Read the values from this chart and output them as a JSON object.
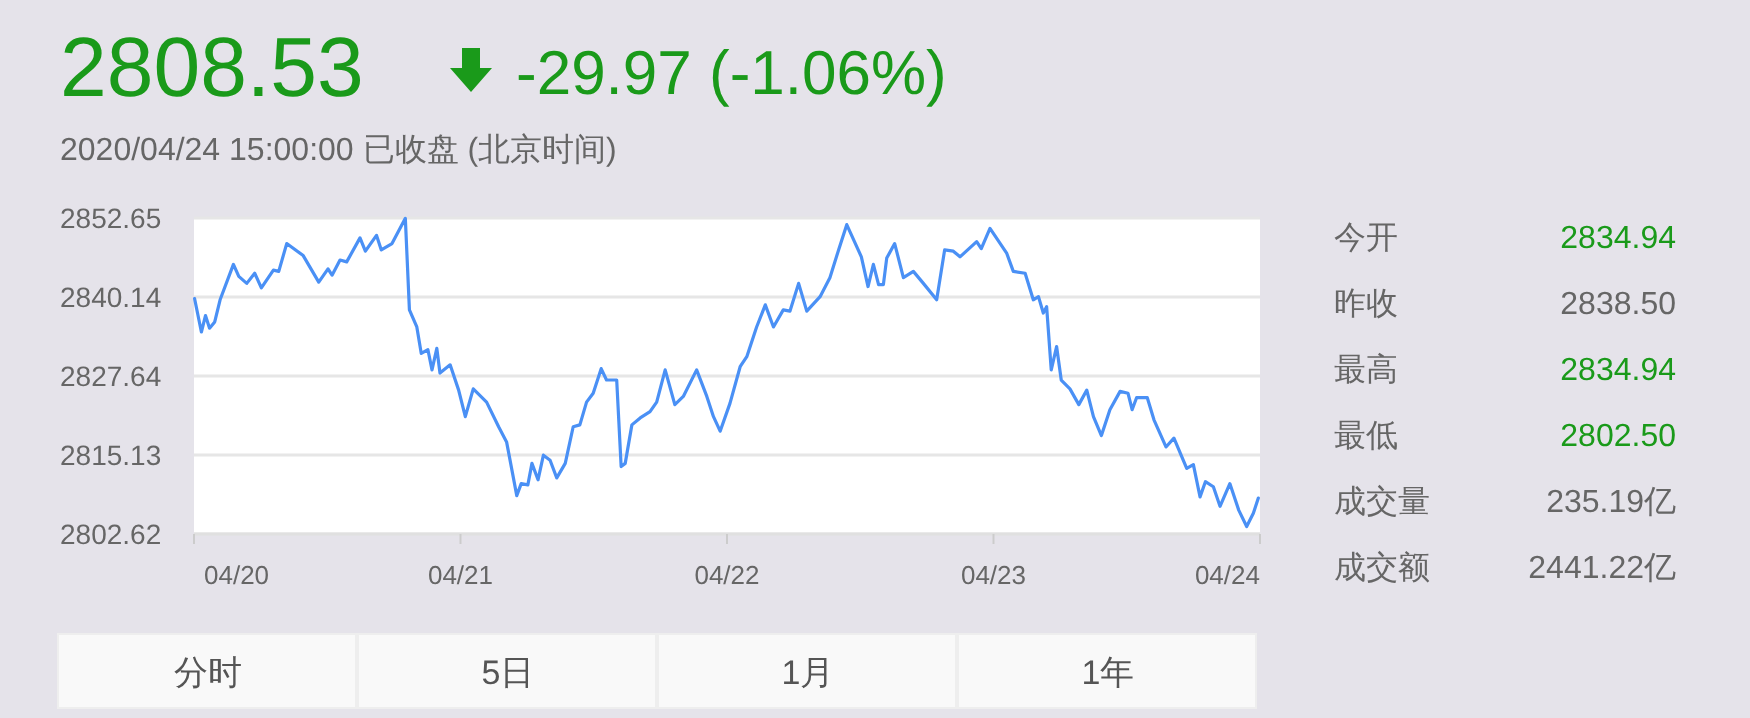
{
  "chart_data": [
    {
      "type": "line",
      "title": "2808.53",
      "subtitle": "2020/04/24 15:00:00   已收盘   (北京时间)",
      "annotations": [
        "-29.97 (-1.06%)"
      ],
      "xlim": [
        "2020-04-20",
        "2020-04-24"
      ],
      "xticks": [
        {
          "value": "2020-04-20",
          "label": "04/20"
        },
        {
          "value": "2020-04-21",
          "label": "04/21"
        },
        {
          "value": "2020-04-22",
          "label": "04/22"
        },
        {
          "value": "2020-04-23",
          "label": "04/23"
        },
        {
          "value": "2020-04-24",
          "label": "04/24"
        }
      ],
      "ylim": [
        2802.62,
        2852.65
      ],
      "yticks": [
        2802.62,
        2815.13,
        2827.64,
        2840.14,
        2852.65
      ],
      "grid": "y",
      "series": [
        {
          "color": "#4a90f5",
          "x": [
            "2020-04-20T00:03",
            "2020-04-20T00:40",
            "2020-04-20T01:02",
            "2020-04-20T01:24",
            "2020-04-20T01:52",
            "2020-04-20T02:21",
            "2020-04-20T03:33",
            "2020-04-20T04:02",
            "2020-04-20T04:45",
            "2020-04-20T05:28",
            "2020-04-20T06:04",
            "2020-04-20T07:09",
            "2020-04-20T07:38",
            "2020-04-20T08:21",
            "2020-04-20T09:50",
            "2020-04-20T11:14",
            "2020-04-20T12:04",
            "2020-04-20T12:26",
            "2020-04-20T13:09",
            "2020-04-20T13:45",
            "2020-04-20T14:57",
            "2020-04-20T15:26",
            "2020-04-20T16:26",
            "2020-04-20T16:52",
            "2020-04-20T17:50",
            "2020-04-20T19:02",
            "2020-04-20T19:24",
            "2020-04-20T20:04",
            "2020-04-20T20:28",
            "2020-04-20T21:04",
            "2020-04-20T21:26",
            "2020-04-20T21:52",
            "2020-04-20T22:09",
            "2020-04-20T23:04",
            "2020-04-20T23:50",
            "2020-04-21T00:26",
            "2020-04-21T01:09",
            "2020-04-21T02:21",
            "2020-04-21T03:26",
            "2020-04-21T04:09",
            "2020-04-21T05:04",
            "2020-04-21T05:28",
            "2020-04-21T06:04",
            "2020-04-21T06:26",
            "2020-04-21T06:59",
            "2020-04-21T07:28",
            "2020-04-21T08:04",
            "2020-04-21T08:40",
            "2020-04-21T09:26",
            "2020-04-21T10:09",
            "2020-04-21T10:45",
            "2020-04-21T11:21",
            "2020-04-21T11:57",
            "2020-04-21T12:40",
            "2020-04-21T13:09",
            "2020-04-21T14:04",
            "2020-04-21T14:28",
            "2020-04-21T14:50",
            "2020-04-21T15:26",
            "2020-04-21T16:11",
            "2020-04-21T17:04",
            "2020-04-21T17:40",
            "2020-04-21T18:26",
            "2020-04-21T19:18",
            "2020-04-21T20:04",
            "2020-04-21T21:16",
            "2020-04-21T22:11",
            "2020-04-21T22:47",
            "2020-04-21T23:23",
            "2020-04-22T00:16",
            "2020-04-22T01:11",
            "2020-04-22T01:47",
            "2020-04-22T02:40",
            "2020-04-22T03:27",
            "2020-04-22T04:11",
            "2020-04-22T05:04",
            "2020-04-22T05:40",
            "2020-04-22T06:27",
            "2020-04-22T07:11",
            "2020-04-22T08:23",
            "2020-04-22T09:16",
            "2020-04-22T10:03",
            "2020-04-22T10:47",
            "2020-04-22T12:06",
            "2020-04-22T12:42",
            "2020-04-22T13:11",
            "2020-04-22T13:39",
            "2020-04-22T14:05",
            "2020-04-22T14:23",
            "2020-04-22T15:06",
            "2020-04-22T15:53",
            "2020-04-22T16:47",
            "2020-04-22T17:41",
            "2020-04-22T18:53",
            "2020-04-22T19:36",
            "2020-04-22T20:23",
            "2020-04-22T20:59",
            "2020-04-22T22:29",
            "2020-04-22T22:54",
            "2020-04-22T23:41",
            "2020-04-23T01:11",
            "2020-04-23T01:47",
            "2020-04-23T02:51",
            "2020-04-23T03:35",
            "2020-04-23T04:03",
            "2020-04-23T04:29",
            "2020-04-23T04:47",
            "2020-04-23T05:12",
            "2020-04-23T05:41",
            "2020-04-23T06:06",
            "2020-04-23T06:53",
            "2020-04-23T07:41",
            "2020-04-23T08:24",
            "2020-04-23T09:00",
            "2020-04-23T09:43",
            "2020-04-23T10:29",
            "2020-04-23T11:24",
            "2020-04-23T12:07",
            "2020-04-23T12:29",
            "2020-04-23T12:53",
            "2020-04-23T13:51",
            "2020-04-23T14:27",
            "2020-04-23T15:32",
            "2020-04-23T16:15",
            "2020-04-23T17:24",
            "2020-04-23T18:00",
            "2020-04-23T18:36",
            "2020-04-23T19:05",
            "2020-04-23T19:48",
            "2020-04-23T20:24",
            "2020-04-23T21:17",
            "2020-04-23T22:05",
            "2020-04-23T22:48",
            "2020-04-23T23:24",
            "2020-04-23T23:51"
          ],
          "values": [
            2839.9,
            2834.6,
            2837.2,
            2835.2,
            2836.2,
            2839.7,
            2845.3,
            2843.4,
            2842.3,
            2843.9,
            2841.6,
            2844.4,
            2844.2,
            2848.6,
            2846.7,
            2842.5,
            2844.6,
            2843.6,
            2846.0,
            2845.7,
            2849.5,
            2847.4,
            2849.9,
            2847.6,
            2848.6,
            2852.6,
            2838.1,
            2835.4,
            2831.2,
            2831.8,
            2828.6,
            2832.0,
            2828.1,
            2829.4,
            2825.4,
            2821.2,
            2825.6,
            2823.5,
            2819.6,
            2817.2,
            2808.7,
            2810.6,
            2810.4,
            2813.8,
            2811.2,
            2815.1,
            2814.3,
            2811.5,
            2813.8,
            2819.6,
            2819.9,
            2823.5,
            2824.9,
            2828.8,
            2827.0,
            2827.0,
            2813.3,
            2813.8,
            2819.9,
            2821.0,
            2822.0,
            2823.5,
            2828.6,
            2823.1,
            2824.4,
            2828.6,
            2824.4,
            2821.2,
            2818.9,
            2823.3,
            2829.1,
            2830.7,
            2835.4,
            2838.9,
            2835.4,
            2838.1,
            2837.9,
            2842.3,
            2837.9,
            2840.2,
            2843.2,
            2847.6,
            2851.6,
            2846.5,
            2841.8,
            2845.3,
            2842.1,
            2842.1,
            2846.3,
            2848.6,
            2843.2,
            2844.2,
            2842.3,
            2839.7,
            2847.6,
            2847.4,
            2846.5,
            2848.9,
            2847.8,
            2851.0,
            2847.1,
            2844.2,
            2843.9,
            2839.7,
            2840.2,
            2837.6,
            2838.6,
            2828.6,
            2832.3,
            2827.0,
            2825.6,
            2823.1,
            2825.4,
            2821.2,
            2818.2,
            2822.3,
            2825.2,
            2824.9,
            2822.3,
            2824.2,
            2824.2,
            2820.7,
            2816.4,
            2817.8,
            2813.0,
            2813.6,
            2808.5,
            2810.9,
            2810.1,
            2807.0,
            2810.6,
            2806.4,
            2803.8,
            2805.9,
            2808.3
          ]
        }
      ]
    },
    {
      "type": "other",
      "annotations": [
        "今开",
        "2834.94",
        "昨收",
        "2838.50",
        "最高",
        "2834.94",
        "最低",
        "2802.50",
        "成交量",
        "235.19亿",
        "成交额",
        "2441.22亿"
      ],
      "colors": [
        "#666666",
        "#1a9a1a",
        "#666666",
        "#666666",
        "#666666",
        "#1a9a1a",
        "#666666",
        "#1a9a1a",
        "#666666",
        "#666666",
        "#666666",
        "#666666"
      ]
    },
    {
      "type": "other",
      "annotations": [
        "分时",
        "5日",
        "1月",
        "1年"
      ]
    }
  ]
}
